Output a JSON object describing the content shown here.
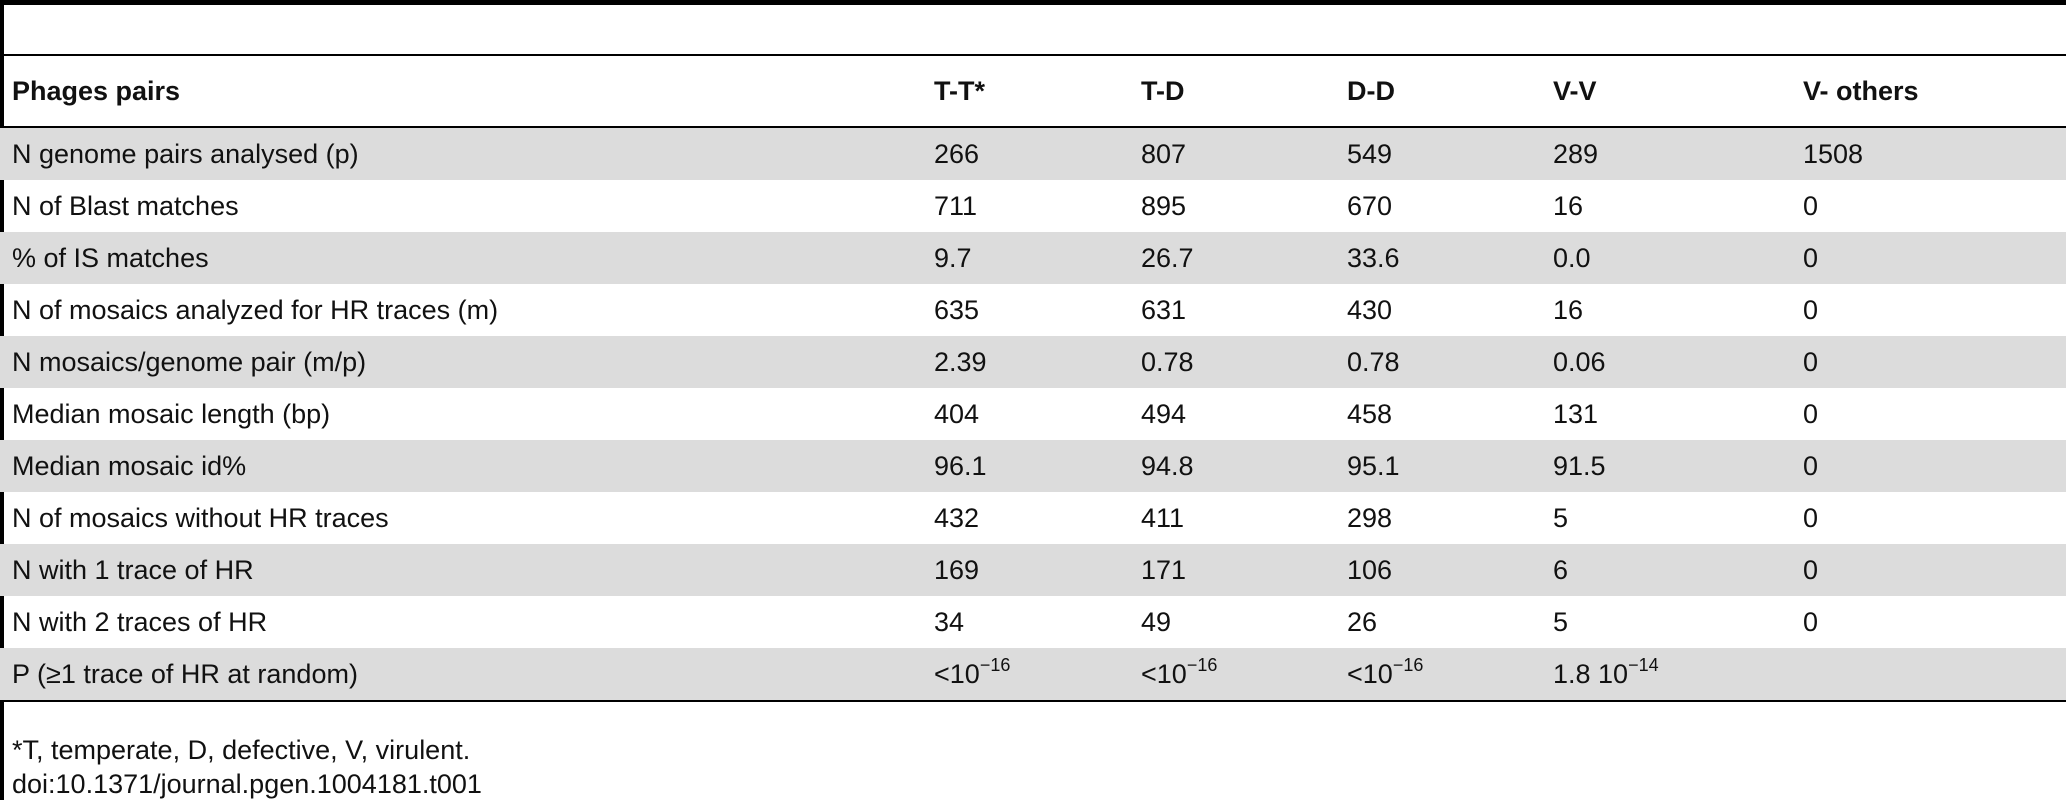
{
  "table": {
    "columns": [
      "Phages pairs",
      "T-T*",
      "T-D",
      "D-D",
      "V-V",
      "V- others"
    ],
    "rows": [
      [
        "N genome pairs analysed (p)",
        "266",
        "807",
        "549",
        "289",
        "1508"
      ],
      [
        "N of Blast matches",
        "711",
        "895",
        "670",
        "16",
        "0"
      ],
      [
        "% of IS matches",
        "9.7",
        "26.7",
        "33.6",
        "0.0",
        "0"
      ],
      [
        "N of mosaics analyzed for HR traces (m)",
        "635",
        "631",
        "430",
        "16",
        "0"
      ],
      [
        "N mosaics/genome pair (m/p)",
        "2.39",
        "0.78",
        "0.78",
        "0.06",
        "0"
      ],
      [
        "Median mosaic length (bp)",
        "404",
        "494",
        "458",
        "131",
        "0"
      ],
      [
        "Median mosaic id%",
        "96.1",
        "94.8",
        "95.1",
        "91.5",
        "0"
      ],
      [
        "N of mosaics without HR traces",
        "432",
        "411",
        "298",
        "5",
        "0"
      ],
      [
        "N with 1 trace of HR",
        "169",
        "171",
        "106",
        "6",
        "0"
      ],
      [
        "N with 2 traces of HR",
        "34",
        "49",
        "26",
        "5",
        "0"
      ]
    ],
    "p_row": {
      "label": "P (≥1 trace of HR at random)",
      "tt_base": "<10",
      "tt_exp": "−16",
      "td_base": "<10",
      "td_exp": "−16",
      "dd_base": "<10",
      "dd_exp": "−16",
      "vv_base": "1.8 10",
      "vv_exp": "−14",
      "vo": ""
    }
  },
  "footer": {
    "note": "*T, temperate, D, defective, V, virulent.",
    "doi": "doi:10.1371/journal.pgen.1004181.t001"
  }
}
